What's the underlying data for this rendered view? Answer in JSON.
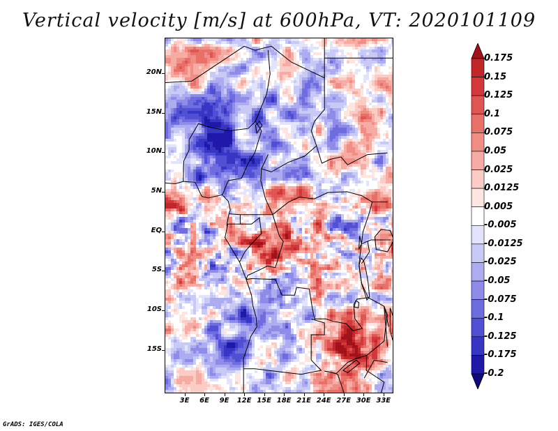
{
  "title": "Vertical velocity [m/s] at 600hPa, VT: 2020101109",
  "credit": "GrADS: IGES/COLA",
  "lat_labels": [
    "20N",
    "15N",
    "10N",
    "5N",
    "EQ",
    "5S",
    "10S",
    "15S"
  ],
  "lat_values": [
    20,
    15,
    10,
    5,
    0,
    -5,
    -10,
    -15
  ],
  "lon_labels": [
    "3E",
    "6E",
    "9E",
    "12E",
    "15E",
    "18E",
    "21E",
    "24E",
    "27E",
    "30E",
    "33E"
  ],
  "lon_values": [
    3,
    6,
    9,
    12,
    15,
    18,
    21,
    24,
    27,
    30,
    33
  ],
  "map_extent": {
    "lon_min": 0,
    "lon_max": 34.5,
    "lat_min": -20.5,
    "lat_max": 24.5
  },
  "legend": {
    "labels": [
      "0.175",
      "0.15",
      "0.125",
      "0.1",
      "0.075",
      "0.05",
      "0.025",
      "0.0125",
      "0.005",
      "-0.005",
      "-0.0125",
      "-0.025",
      "-0.05",
      "-0.075",
      "-0.1",
      "-0.125",
      "-0.175",
      "-0.2"
    ],
    "colors": [
      "#a1121c",
      "#c0262a",
      "#d2383b",
      "#df5553",
      "#e87069",
      "#f08e86",
      "#f6aca5",
      "#fbcbc6",
      "#fde5e2",
      "#ffffff",
      "#e3e4fb",
      "#c9c9f6",
      "#aeacf1",
      "#8e8be9",
      "#6f6ce0",
      "#5150d4",
      "#3736c4",
      "#2018a8",
      "#11087e"
    ]
  }
}
